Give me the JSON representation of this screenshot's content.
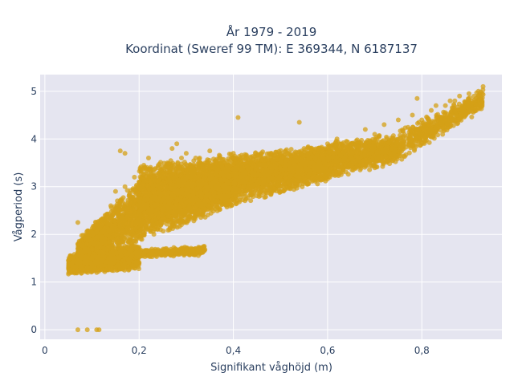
{
  "chart_data": {
    "type": "scatter",
    "title": [
      "År 1979 - 2019",
      "Koordinat (Sweref 99 TM): E 369344, N 6187137"
    ],
    "xlabel": "Signifikant våghöjd (m)",
    "ylabel": "Vågperiod (s)",
    "xlim": [
      -0.01,
      0.97
    ],
    "ylim": [
      -0.2,
      5.35
    ],
    "x_ticks": [
      0,
      0.2,
      0.4,
      0.6,
      0.8
    ],
    "x_tick_labels": [
      "0",
      "0,2",
      "0,4",
      "0,6",
      "0,8"
    ],
    "y_ticks": [
      0,
      1,
      2,
      3,
      4,
      5
    ],
    "y_tick_labels": [
      "0",
      "1",
      "2",
      "3",
      "4",
      "5"
    ],
    "grid": true,
    "legend": "none",
    "colors": {
      "marker": "#d4a017",
      "plot_bg": "#e5e5f0",
      "grid": "#ffffff",
      "text": "#2a3f5f"
    },
    "series": [
      {
        "marker_opacity": 0.75,
        "points": [
          [
            0.07,
            0.0
          ],
          [
            0.09,
            0.0
          ],
          [
            0.11,
            0.0
          ],
          [
            0.115,
            0.0
          ],
          [
            0.05,
            1.45
          ],
          [
            0.06,
            1.5
          ],
          [
            0.07,
            1.4
          ],
          [
            0.08,
            1.55
          ],
          [
            0.09,
            1.3
          ],
          [
            0.1,
            1.5
          ],
          [
            0.11,
            1.2
          ],
          [
            0.12,
            1.35
          ],
          [
            0.13,
            1.25
          ],
          [
            0.14,
            1.4
          ],
          [
            0.15,
            1.3
          ],
          [
            0.16,
            1.28
          ],
          [
            0.18,
            1.45
          ],
          [
            0.2,
            1.4
          ],
          [
            0.07,
            2.25
          ],
          [
            0.11,
            2.05
          ],
          [
            0.12,
            2.2
          ],
          [
            0.13,
            2.4
          ],
          [
            0.14,
            2.6
          ],
          [
            0.15,
            2.9
          ],
          [
            0.16,
            2.7
          ],
          [
            0.17,
            3.0
          ],
          [
            0.18,
            2.8
          ],
          [
            0.19,
            3.2
          ],
          [
            0.2,
            3.1
          ],
          [
            0.16,
            3.75
          ],
          [
            0.17,
            3.7
          ],
          [
            0.21,
            3.45
          ],
          [
            0.22,
            3.6
          ],
          [
            0.23,
            3.3
          ],
          [
            0.24,
            3.4
          ],
          [
            0.25,
            2.5
          ],
          [
            0.26,
            3.5
          ],
          [
            0.27,
            3.8
          ],
          [
            0.28,
            3.9
          ],
          [
            0.29,
            3.6
          ],
          [
            0.3,
            3.7
          ],
          [
            0.31,
            3.4
          ],
          [
            0.32,
            3.6
          ],
          [
            0.33,
            3.5
          ],
          [
            0.35,
            3.75
          ],
          [
            0.37,
            3.6
          ],
          [
            0.4,
            3.7
          ],
          [
            0.41,
            4.45
          ],
          [
            0.43,
            3.5
          ],
          [
            0.45,
            3.45
          ],
          [
            0.48,
            3.7
          ],
          [
            0.5,
            3.55
          ],
          [
            0.54,
            4.35
          ],
          [
            0.55,
            3.8
          ],
          [
            0.58,
            3.8
          ],
          [
            0.6,
            3.9
          ],
          [
            0.62,
            4.0
          ],
          [
            0.65,
            3.9
          ],
          [
            0.68,
            4.2
          ],
          [
            0.7,
            4.1
          ],
          [
            0.72,
            4.3
          ],
          [
            0.75,
            4.4
          ],
          [
            0.78,
            4.5
          ],
          [
            0.8,
            4.4
          ],
          [
            0.82,
            4.6
          ],
          [
            0.85,
            4.7
          ],
          [
            0.87,
            4.8
          ],
          [
            0.88,
            4.9
          ],
          [
            0.9,
            4.95
          ],
          [
            0.92,
            5.0
          ],
          [
            0.93,
            5.1
          ],
          [
            0.79,
            4.85
          ],
          [
            0.83,
            4.7
          ],
          [
            0.86,
            4.8
          ],
          [
            0.2,
            1.6
          ],
          [
            0.22,
            1.55
          ],
          [
            0.25,
            1.6
          ],
          [
            0.28,
            1.65
          ],
          [
            0.3,
            1.7
          ],
          [
            0.33,
            1.72
          ]
        ],
        "bands": [
          {
            "x0": 0.05,
            "x1": 0.2,
            "y_lo0": 1.15,
            "y_lo1": 1.25,
            "y_hi0": 1.6,
            "y_hi1": 1.8,
            "n": 1400
          },
          {
            "x0": 0.19,
            "x1": 0.34,
            "y_lo0": 1.5,
            "y_lo1": 1.55,
            "y_hi0": 1.68,
            "y_hi1": 1.78,
            "n": 350
          },
          {
            "x0": 0.07,
            "x1": 0.2,
            "y_lo0": 1.4,
            "y_lo1": 1.7,
            "y_hi0": 1.9,
            "y_hi1": 3.2,
            "n": 1200
          },
          {
            "x0": 0.2,
            "x1": 0.4,
            "y_lo0": 1.8,
            "y_lo1": 2.55,
            "y_hi0": 3.5,
            "y_hi1": 3.7,
            "n": 3200
          },
          {
            "x0": 0.4,
            "x1": 0.6,
            "y_lo0": 2.6,
            "y_lo1": 3.1,
            "y_hi0": 3.7,
            "y_hi1": 3.9,
            "n": 2000
          },
          {
            "x0": 0.6,
            "x1": 0.75,
            "y_lo0": 3.1,
            "y_lo1": 3.5,
            "y_hi0": 3.95,
            "y_hi1": 4.15,
            "n": 900
          },
          {
            "x0": 0.75,
            "x1": 0.93,
            "y_lo0": 3.5,
            "y_lo1": 4.6,
            "y_hi0": 4.2,
            "y_hi1": 5.05,
            "n": 500
          }
        ]
      }
    ]
  }
}
